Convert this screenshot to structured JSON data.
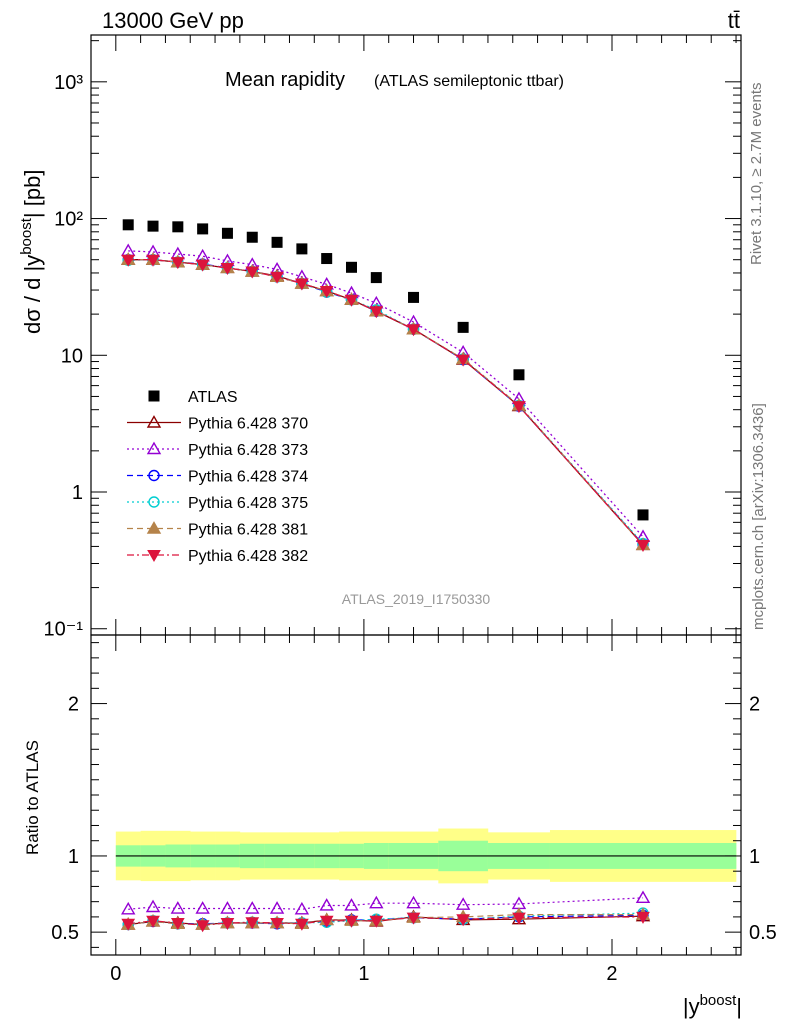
{
  "header": {
    "left": "13000 GeV pp",
    "right": "tt̄"
  },
  "side_labels": {
    "rivet": "Rivet 3.1.10, ≥ 2.7M events",
    "mcplots": "mcplots.cern.ch [arXiv:1306.3436]"
  },
  "chart_data": [
    {
      "type": "scatter",
      "title": "Mean rapidity",
      "subtitle": "(ATLAS semileptonic ttbar)",
      "ylabel": "dσ / d |y^boost| [pb]",
      "xlabel": "|y^boost|",
      "watermark": "ATLAS_2019_I1750330",
      "yscale": "log",
      "xlim": [
        -0.1,
        2.52
      ],
      "ylim": [
        0.09,
        2200
      ],
      "y_ticks": [
        {
          "v": 0.1,
          "label": "10⁻¹"
        },
        {
          "v": 1,
          "label": "1"
        },
        {
          "v": 10,
          "label": "10"
        },
        {
          "v": 100,
          "label": "10²"
        },
        {
          "v": 1000,
          "label": "10³"
        }
      ],
      "x": [
        0.05,
        0.15,
        0.25,
        0.35,
        0.45,
        0.55,
        0.65,
        0.75,
        0.85,
        0.95,
        1.05,
        1.2,
        1.4,
        1.625,
        2.125
      ],
      "series": [
        {
          "name": "ATLAS",
          "color": "#000000",
          "marker": "square",
          "line": "none",
          "values": [
            90,
            88,
            87,
            84,
            78,
            73,
            67,
            60,
            51,
            44,
            37,
            26.5,
            16,
            7.2,
            0.68
          ]
        },
        {
          "name": "Pythia 6.428 370",
          "color": "#8b0000",
          "marker": "triangle-open",
          "line": "solid",
          "values": [
            50,
            50,
            48,
            46,
            43.5,
            41,
            38,
            33.5,
            29.5,
            25.5,
            21,
            15.5,
            9.3,
            4.25,
            0.41
          ]
        },
        {
          "name": "Pythia 6.428 373",
          "color": "#9400d3",
          "marker": "triangle-open",
          "line": "dotted",
          "values": [
            58,
            57,
            55,
            53,
            49,
            46,
            42.5,
            37.5,
            33,
            28.5,
            24,
            17.5,
            10.5,
            4.8,
            0.47
          ]
        },
        {
          "name": "Pythia 6.428 374",
          "color": "#0000ff",
          "marker": "circle-open",
          "line": "dashed",
          "values": [
            50,
            50,
            48,
            46.5,
            43.5,
            41,
            37.5,
            33.5,
            29,
            25.5,
            21,
            15.5,
            9.3,
            4.25,
            0.415
          ]
        },
        {
          "name": "Pythia 6.428 375",
          "color": "#00ced1",
          "marker": "circle-open",
          "line": "dotted",
          "values": [
            49.5,
            50,
            48,
            46,
            43.5,
            41,
            37.5,
            33.5,
            29,
            25.5,
            21.5,
            15.5,
            9.4,
            4.3,
            0.42
          ]
        },
        {
          "name": "Pythia 6.428 381",
          "color": "#b5834a",
          "marker": "triangle-filled",
          "line": "dashed",
          "values": [
            50,
            50,
            48,
            46,
            43.5,
            41,
            37.5,
            33.5,
            29.5,
            25.5,
            21,
            15.5,
            9.4,
            4.3,
            0.41
          ]
        },
        {
          "name": "Pythia 6.428 382",
          "color": "#dc143c",
          "marker": "triangle-down-filled",
          "line": "dashdot",
          "values": [
            50,
            50,
            48,
            46,
            43.5,
            41,
            37.5,
            33.5,
            29.5,
            25.5,
            21,
            15.5,
            9.3,
            4.25,
            0.41
          ]
        }
      ]
    },
    {
      "type": "line",
      "ylabel": "Ratio to ATLAS",
      "xlabel": "|y^boost|",
      "xlim": [
        -0.1,
        2.52
      ],
      "ylim": [
        0.35,
        2.45
      ],
      "x_ticks": [
        0,
        1,
        2
      ],
      "y_ticks": [
        0.5,
        1,
        2
      ],
      "bins": [
        0,
        0.1,
        0.2,
        0.3,
        0.4,
        0.5,
        0.6,
        0.7,
        0.8,
        0.9,
        1.0,
        1.1,
        1.3,
        1.5,
        1.75,
        2.5
      ],
      "band_inner": {
        "color": "#99ff99",
        "lo": [
          0.93,
          0.93,
          0.925,
          0.925,
          0.925,
          0.92,
          0.92,
          0.92,
          0.92,
          0.92,
          0.915,
          0.915,
          0.9,
          0.915,
          0.915
        ],
        "hi": [
          1.07,
          1.07,
          1.075,
          1.075,
          1.075,
          1.08,
          1.08,
          1.08,
          1.08,
          1.08,
          1.085,
          1.085,
          1.1,
          1.085,
          1.085
        ]
      },
      "band_outer": {
        "color": "#ffff88",
        "lo": [
          0.84,
          0.835,
          0.835,
          0.84,
          0.84,
          0.845,
          0.845,
          0.845,
          0.845,
          0.84,
          0.84,
          0.84,
          0.82,
          0.845,
          0.83
        ],
        "hi": [
          1.16,
          1.165,
          1.165,
          1.16,
          1.16,
          1.155,
          1.155,
          1.155,
          1.155,
          1.16,
          1.16,
          1.16,
          1.18,
          1.155,
          1.17
        ]
      },
      "reference": 1.0,
      "x": [
        0.05,
        0.15,
        0.25,
        0.35,
        0.45,
        0.55,
        0.65,
        0.75,
        0.85,
        0.95,
        1.05,
        1.2,
        1.4,
        1.625,
        2.125
      ],
      "series": [
        {
          "name": "Pythia 6.428 370",
          "color": "#8b0000",
          "marker": "triangle-open",
          "line": "solid",
          "values": [
            0.55,
            0.57,
            0.56,
            0.55,
            0.56,
            0.56,
            0.56,
            0.56,
            0.58,
            0.58,
            0.57,
            0.6,
            0.58,
            0.585,
            0.605
          ]
        },
        {
          "name": "Pythia 6.428 373",
          "color": "#9400d3",
          "marker": "triangle-open",
          "line": "dotted",
          "values": [
            0.65,
            0.665,
            0.655,
            0.655,
            0.655,
            0.655,
            0.655,
            0.65,
            0.675,
            0.675,
            0.69,
            0.69,
            0.68,
            0.685,
            0.725
          ]
        },
        {
          "name": "Pythia 6.428 374",
          "color": "#0000ff",
          "marker": "circle-open",
          "line": "dashed",
          "values": [
            0.55,
            0.57,
            0.555,
            0.555,
            0.56,
            0.56,
            0.555,
            0.56,
            0.57,
            0.58,
            0.58,
            0.595,
            0.585,
            0.6,
            0.61
          ]
        },
        {
          "name": "Pythia 6.428 375",
          "color": "#00ced1",
          "marker": "circle-open",
          "line": "dotted",
          "values": [
            0.55,
            0.575,
            0.555,
            0.55,
            0.56,
            0.565,
            0.56,
            0.56,
            0.565,
            0.575,
            0.585,
            0.595,
            0.585,
            0.605,
            0.625
          ]
        },
        {
          "name": "Pythia 6.428 381",
          "color": "#b5834a",
          "marker": "triangle-filled",
          "line": "dashed",
          "values": [
            0.55,
            0.57,
            0.555,
            0.55,
            0.56,
            0.56,
            0.56,
            0.555,
            0.58,
            0.575,
            0.575,
            0.595,
            0.6,
            0.615,
            0.615
          ]
        },
        {
          "name": "Pythia 6.428 382",
          "color": "#dc143c",
          "marker": "triangle-down-filled",
          "line": "dashdot",
          "values": [
            0.555,
            0.575,
            0.56,
            0.545,
            0.56,
            0.565,
            0.56,
            0.555,
            0.575,
            0.575,
            0.575,
            0.595,
            0.585,
            0.595,
            0.6
          ]
        }
      ]
    }
  ]
}
